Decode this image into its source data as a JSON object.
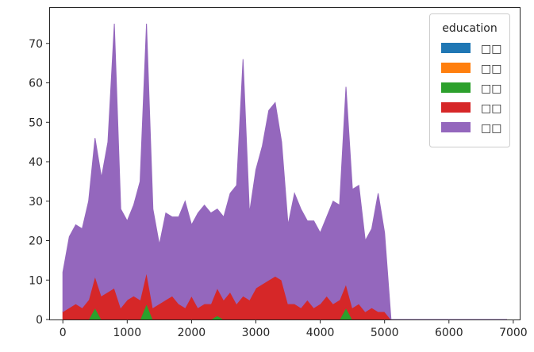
{
  "chart_data": {
    "type": "area",
    "title": "",
    "xlabel": "",
    "ylabel": "",
    "xlim": [
      -200,
      7100
    ],
    "ylim": [
      0,
      79
    ],
    "xticks": [
      0,
      1000,
      2000,
      3000,
      4000,
      5000,
      6000,
      7000
    ],
    "yticks": [
      0,
      10,
      20,
      30,
      40,
      50,
      60,
      70
    ],
    "grid": false,
    "stacked": true,
    "legend": {
      "title": "education",
      "placement": "top-right"
    },
    "x": [
      0,
      100,
      200,
      300,
      400,
      500,
      600,
      700,
      800,
      900,
      1000,
      1100,
      1200,
      1300,
      1400,
      1500,
      1600,
      1700,
      1800,
      1900,
      2000,
      2100,
      2200,
      2300,
      2400,
      2500,
      2600,
      2700,
      2800,
      2900,
      3000,
      3100,
      3200,
      3300,
      3400,
      3500,
      3600,
      3700,
      3800,
      3900,
      4000,
      4100,
      4200,
      4300,
      4400,
      4500,
      4600,
      4700,
      4800,
      4900,
      5000,
      5100,
      6900
    ],
    "series": [
      {
        "name": "□□",
        "color": "#1f77b4",
        "values": [
          0,
          0,
          0,
          0,
          0,
          0,
          0,
          0,
          0,
          0,
          0,
          0,
          0,
          0,
          0,
          0,
          0,
          0,
          0,
          0,
          0,
          0,
          0,
          0,
          0,
          0,
          0,
          0,
          0,
          0,
          0,
          0,
          0,
          0,
          0,
          0,
          0,
          0,
          0,
          0,
          0,
          0,
          0,
          0,
          0,
          0,
          0,
          0,
          0,
          0,
          0,
          0,
          0
        ]
      },
      {
        "name": "□□",
        "color": "#ff7f0e",
        "values": [
          0,
          0,
          0,
          0,
          0,
          0,
          0,
          0,
          0,
          0,
          0,
          0,
          0,
          0,
          0,
          0,
          0,
          0,
          0,
          0,
          0,
          0,
          0,
          0,
          0,
          0,
          0,
          0,
          0,
          0,
          0,
          0,
          0,
          0,
          0,
          0,
          0,
          0,
          0,
          0,
          0,
          0,
          0,
          0,
          0,
          0,
          0,
          0,
          0,
          0,
          0,
          0,
          0
        ]
      },
      {
        "name": "□□",
        "color": "#2ca02c",
        "values": [
          0,
          0,
          0,
          0,
          0,
          3,
          0,
          0,
          0,
          0,
          0,
          0,
          0,
          4,
          0,
          0,
          0,
          0,
          0,
          0,
          0,
          0,
          0,
          0,
          1,
          0,
          0,
          0,
          0,
          0,
          0,
          0,
          0,
          0,
          0,
          0,
          0,
          0,
          0,
          0,
          0,
          0,
          0,
          0,
          3,
          0,
          0,
          0,
          0,
          0,
          0,
          0,
          0
        ]
      },
      {
        "name": "□□",
        "color": "#d62728",
        "values": [
          2,
          3,
          4,
          3,
          5,
          8,
          6,
          7,
          8,
          3,
          5,
          6,
          5,
          8,
          3,
          4,
          5,
          6,
          4,
          3,
          6,
          3,
          4,
          4,
          7,
          5,
          7,
          4,
          6,
          5,
          8,
          9,
          10,
          11,
          10,
          4,
          4,
          3,
          5,
          3,
          4,
          6,
          4,
          5,
          6,
          3,
          4,
          2,
          3,
          2,
          2,
          0,
          0
        ]
      },
      {
        "name": "□□",
        "color": "#9467bd",
        "values": [
          10,
          18,
          20,
          20,
          25,
          35,
          30,
          38,
          67,
          25,
          20,
          23,
          30,
          63,
          25,
          15,
          22,
          20,
          22,
          27,
          18,
          24,
          25,
          23,
          20,
          21,
          25,
          30,
          60,
          22,
          30,
          35,
          43,
          44,
          35,
          20,
          28,
          25,
          20,
          22,
          18,
          20,
          26,
          24,
          50,
          30,
          30,
          18,
          20,
          30,
          20,
          0,
          0
        ]
      }
    ]
  }
}
